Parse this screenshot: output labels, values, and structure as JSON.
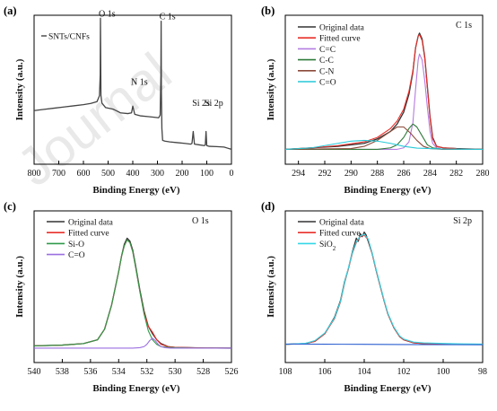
{
  "figure": {
    "watermark": "Journal"
  },
  "chart_data": [
    {
      "panel": "(a)",
      "type": "line",
      "xlabel": "Binding Energy  (eV)",
      "ylabel": "Intensity  (a.u.)",
      "xlim": [
        800,
        0
      ],
      "xticks": [
        800,
        700,
        600,
        500,
        400,
        300,
        200,
        100,
        0
      ],
      "ylim": [
        0,
        100
      ],
      "legend": [
        "SNTs/CNFs"
      ],
      "legend_position": "top-left",
      "annotations": [
        {
          "text": "O 1s",
          "x": 531,
          "y": 98
        },
        {
          "text": "C 1s",
          "x": 285,
          "y": 96
        },
        {
          "text": "N 1s",
          "x": 400,
          "y": 52
        },
        {
          "text": "Si 2s",
          "x": 152,
          "y": 38
        },
        {
          "text": "Si 2p",
          "x": 102,
          "y": 38
        }
      ],
      "series": [
        {
          "name": "SNTs/CNFs",
          "color": "#444444",
          "x": [
            800,
            760,
            720,
            680,
            640,
            600,
            570,
            545,
            535,
            532,
            531,
            529,
            525,
            510,
            480,
            450,
            420,
            405,
            400,
            397,
            392,
            370,
            340,
            310,
            295,
            289,
            286,
            285,
            284,
            282,
            279,
            270,
            250,
            220,
            190,
            165,
            160,
            155,
            150,
            130,
            110,
            106,
            103,
            100,
            90,
            60,
            30,
            0
          ],
          "y": [
            36,
            36.8,
            37.6,
            38.4,
            39.2,
            40,
            40.8,
            42,
            46,
            60,
            98,
            46,
            41,
            38,
            37,
            34.5,
            34,
            34.5,
            39,
            37,
            33.5,
            32.5,
            32,
            31.5,
            31.2,
            33,
            60,
            96,
            48,
            24,
            16,
            15.5,
            15,
            14.5,
            14,
            13.5,
            14,
            22,
            13.5,
            13,
            12.5,
            13,
            22,
            12.5,
            12,
            11.8,
            11.5,
            10
          ]
        }
      ]
    },
    {
      "panel": "(b)",
      "type": "line",
      "title": "C 1s",
      "xlabel": "Binding Energy  (eV)",
      "ylabel": "Intensity  (a.u.)",
      "xlim": [
        295,
        280
      ],
      "xticks": [
        294,
        292,
        290,
        288,
        286,
        284,
        282,
        280
      ],
      "ylim": [
        0,
        100
      ],
      "legend_position": "top-left",
      "series": [
        {
          "name": "Original data",
          "color": "#333333",
          "x": [
            295,
            293,
            291,
            289,
            288,
            287,
            286.5,
            286,
            285.6,
            285.3,
            285.1,
            284.9,
            284.8,
            284.6,
            284.4,
            284.2,
            284.0,
            283.8,
            283.5,
            283,
            282,
            280
          ],
          "y": [
            10,
            11,
            12,
            14,
            17,
            22,
            27,
            35,
            47,
            62,
            78,
            86,
            88,
            84,
            72,
            52,
            32,
            18,
            12,
            11,
            10.5,
            10
          ]
        },
        {
          "name": "Fitted curve",
          "color": "#e8302a",
          "x": [
            295,
            293,
            291,
            289,
            288,
            287,
            286.5,
            286,
            285.6,
            285.3,
            285.1,
            284.9,
            284.8,
            284.6,
            284.4,
            284.2,
            284.0,
            283.8,
            283.5,
            283,
            282,
            280
          ],
          "y": [
            10,
            11,
            12.5,
            15,
            18,
            24,
            29,
            37,
            49,
            63,
            78,
            86,
            87,
            83,
            71,
            51,
            31,
            17,
            12,
            11,
            10.5,
            10
          ]
        },
        {
          "name": "C=C",
          "color": "#b57be0",
          "x": [
            295,
            286.5,
            286,
            285.6,
            285.3,
            285.1,
            284.9,
            284.8,
            284.6,
            284.4,
            284.2,
            284.0,
            283.8,
            283.5,
            283,
            280
          ],
          "y": [
            10,
            10,
            11,
            15,
            28,
            50,
            70,
            74,
            70,
            56,
            38,
            22,
            14,
            11,
            10,
            10
          ]
        },
        {
          "name": "C-C",
          "color": "#2f7a3a",
          "x": [
            295,
            288,
            287,
            286.5,
            286,
            285.6,
            285.3,
            285.0,
            284.6,
            284.2,
            283.8,
            283,
            280
          ],
          "y": [
            10,
            10,
            11,
            13,
            18,
            24,
            27,
            25,
            19,
            13,
            11,
            10,
            10
          ]
        },
        {
          "name": "C-N",
          "color": "#8b4b3a",
          "x": [
            295,
            290,
            289,
            288,
            287,
            286.5,
            286,
            285.5,
            285,
            284.5,
            284,
            283,
            280
          ],
          "y": [
            10,
            10.5,
            12,
            16,
            22,
            25,
            25,
            21,
            16,
            12,
            10.5,
            10,
            10
          ]
        },
        {
          "name": "C=O",
          "color": "#27c9d8",
          "x": [
            295,
            293,
            292,
            291,
            290,
            289,
            288,
            287,
            286,
            285,
            283,
            280
          ],
          "y": [
            10,
            11,
            12.5,
            14,
            15.5,
            16,
            15.5,
            14,
            12,
            10.8,
            10.2,
            10
          ]
        }
      ]
    },
    {
      "panel": "(c)",
      "type": "line",
      "title": "O 1s",
      "xlabel": "Binding Energy  (eV)",
      "ylabel": "Intensity  (a.u.)",
      "xlim": [
        540,
        526
      ],
      "xticks": [
        540,
        538,
        536,
        534,
        532,
        530,
        528,
        526
      ],
      "ylim": [
        0,
        100
      ],
      "legend_position": "top-left",
      "series": [
        {
          "name": "Original data",
          "color": "#333333",
          "x": [
            540,
            538,
            536.5,
            535.5,
            535,
            534.5,
            534,
            533.8,
            533.6,
            533.4,
            533.2,
            533,
            532.8,
            532.5,
            532.2,
            531.9,
            531.6,
            531.3,
            531,
            530.5,
            530,
            529,
            528,
            526
          ],
          "y": [
            11,
            11.5,
            12.5,
            15,
            22,
            38,
            60,
            70,
            78,
            82,
            80,
            74,
            64,
            48,
            34,
            24,
            19,
            15,
            12.5,
            10.5,
            10,
            9.8,
            9.6,
            9.5
          ]
        },
        {
          "name": "Fitted curve",
          "color": "#e8302a",
          "x": [
            540,
            538,
            536.5,
            535.5,
            535,
            534.5,
            534,
            533.8,
            533.6,
            533.4,
            533.2,
            533,
            532.8,
            532.5,
            532.2,
            531.9,
            531.6,
            531.3,
            531,
            530.5,
            530,
            529,
            528,
            526
          ],
          "y": [
            11,
            11.5,
            12.5,
            15,
            22,
            38,
            60,
            70,
            77,
            81,
            79,
            73,
            63,
            47,
            33,
            24,
            20,
            15,
            12,
            10.5,
            10,
            9.8,
            9.6,
            9.5
          ]
        },
        {
          "name": "Si-O",
          "color": "#2f9a4a",
          "x": [
            540,
            538,
            536.5,
            535.5,
            535,
            534.5,
            534,
            533.8,
            533.6,
            533.4,
            533.2,
            533,
            532.8,
            532.5,
            532.2,
            531.9,
            531.6,
            531.3,
            531,
            530.5,
            530,
            529,
            528,
            526
          ],
          "y": [
            11,
            11.5,
            12.5,
            15,
            22,
            38,
            60,
            70,
            77,
            81,
            79,
            73,
            63,
            47,
            32,
            21,
            15,
            12,
            10.5,
            10,
            9.8,
            9.6,
            9.5,
            9.5
          ]
        },
        {
          "name": "C=O",
          "color": "#9b6fe0",
          "x": [
            540,
            533,
            532.5,
            532.2,
            532,
            531.8,
            531.6,
            531.4,
            531.2,
            531,
            530.7,
            530.3,
            526
          ],
          "y": [
            9.5,
            9.5,
            9.8,
            10.5,
            12,
            14.5,
            16,
            14.5,
            12,
            10.5,
            9.8,
            9.5,
            9.5
          ]
        }
      ]
    },
    {
      "panel": "(d)",
      "type": "line",
      "title": "Si 2p",
      "xlabel": "Binding Energy  (eV)",
      "ylabel": "Intensity  (a.u.)",
      "xlim": [
        108,
        98
      ],
      "xticks": [
        108,
        106,
        104,
        102,
        100,
        98
      ],
      "ylim": [
        0,
        100
      ],
      "legend_position": "top-left",
      "series": [
        {
          "name": "Original data",
          "color": "#333333",
          "x": [
            108,
            107,
            106.5,
            106,
            105.5,
            105.2,
            105,
            104.8,
            104.6,
            104.4,
            104.3,
            104.2,
            104.1,
            104,
            103.9,
            103.8,
            103.6,
            103.4,
            103.2,
            103,
            102.8,
            102.5,
            102.2,
            102,
            101.5,
            101,
            100,
            99,
            98
          ],
          "y": [
            12,
            12.5,
            14,
            19,
            30,
            41,
            53,
            62,
            73,
            82,
            80,
            85,
            83,
            86,
            84,
            80,
            72,
            61,
            51,
            41,
            32,
            23,
            17,
            15,
            13,
            12.5,
            12.2,
            12,
            12
          ]
        },
        {
          "name": "Fitted curve",
          "color": "#e8302a",
          "x": [
            108,
            107,
            106.5,
            106,
            105.5,
            105.2,
            105,
            104.8,
            104.6,
            104.4,
            104.2,
            104,
            103.8,
            103.6,
            103.4,
            103.2,
            103,
            102.8,
            102.5,
            102.2,
            102,
            101.5,
            101,
            100,
            99,
            98
          ],
          "y": [
            12,
            12.5,
            14,
            19,
            29,
            40,
            52,
            62,
            72,
            79,
            83,
            84,
            81,
            72,
            61,
            51,
            41,
            32,
            23,
            17,
            15,
            13,
            12.5,
            12.2,
            12,
            12
          ]
        },
        {
          "name": "SiO2",
          "color": "#33d6e6",
          "x": [
            108,
            107,
            106.5,
            106,
            105.5,
            105.2,
            105,
            104.8,
            104.6,
            104.4,
            104.2,
            104,
            103.8,
            103.6,
            103.4,
            103.2,
            103,
            102.8,
            102.5,
            102.2,
            102,
            101.5,
            101,
            100,
            99,
            98
          ],
          "y": [
            12,
            12.6,
            14.5,
            19.5,
            29.5,
            40.5,
            52.5,
            62.5,
            72.5,
            79.5,
            83.5,
            84.5,
            81.5,
            72.5,
            61.5,
            51.5,
            41.5,
            32.5,
            23.5,
            17.5,
            15.5,
            13.5,
            13,
            12.6,
            12.3,
            12.2
          ]
        },
        {
          "name": "",
          "color": "#2c5fd0",
          "x": [
            108,
            106,
            104,
            102,
            100,
            98
          ],
          "y": [
            12.2,
            12.1,
            12,
            11.9,
            11.8,
            11.7
          ]
        }
      ]
    }
  ]
}
